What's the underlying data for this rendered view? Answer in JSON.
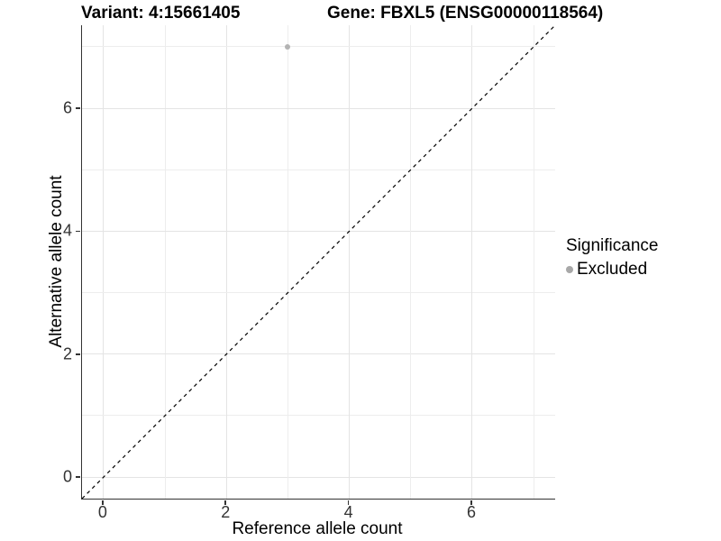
{
  "titles": {
    "variant": "Variant: 4:15661405",
    "gene": "Gene: FBXL5 (ENSG00000118564)"
  },
  "chart_data": {
    "type": "scatter",
    "xlabel": "Reference allele count",
    "ylabel": "Alternative allele count",
    "xlim": [
      -0.35,
      7.35
    ],
    "ylim": [
      -0.35,
      7.35
    ],
    "x_ticks": [
      0,
      2,
      4,
      6
    ],
    "y_ticks": [
      0,
      2,
      4,
      6
    ],
    "grid_positions": [
      0,
      1,
      2,
      3,
      4,
      5,
      6,
      7
    ],
    "grid": true,
    "points": [
      {
        "x": 3,
        "y": 7,
        "series": "Excluded"
      }
    ],
    "reference_line": {
      "type": "identity",
      "slope": 1,
      "intercept": 0,
      "style": "dashed",
      "color": "#000000"
    },
    "legend_position": "right"
  },
  "legend": {
    "title": "Significance",
    "items": [
      {
        "label": "Excluded",
        "color": "#a8a8a8"
      }
    ]
  },
  "colors": {
    "point": "#b3b3b3",
    "grid_major": "#e4e4e4",
    "grid_minor": "#ededed",
    "axis_line": "#333333",
    "tick_label": "#333333"
  }
}
